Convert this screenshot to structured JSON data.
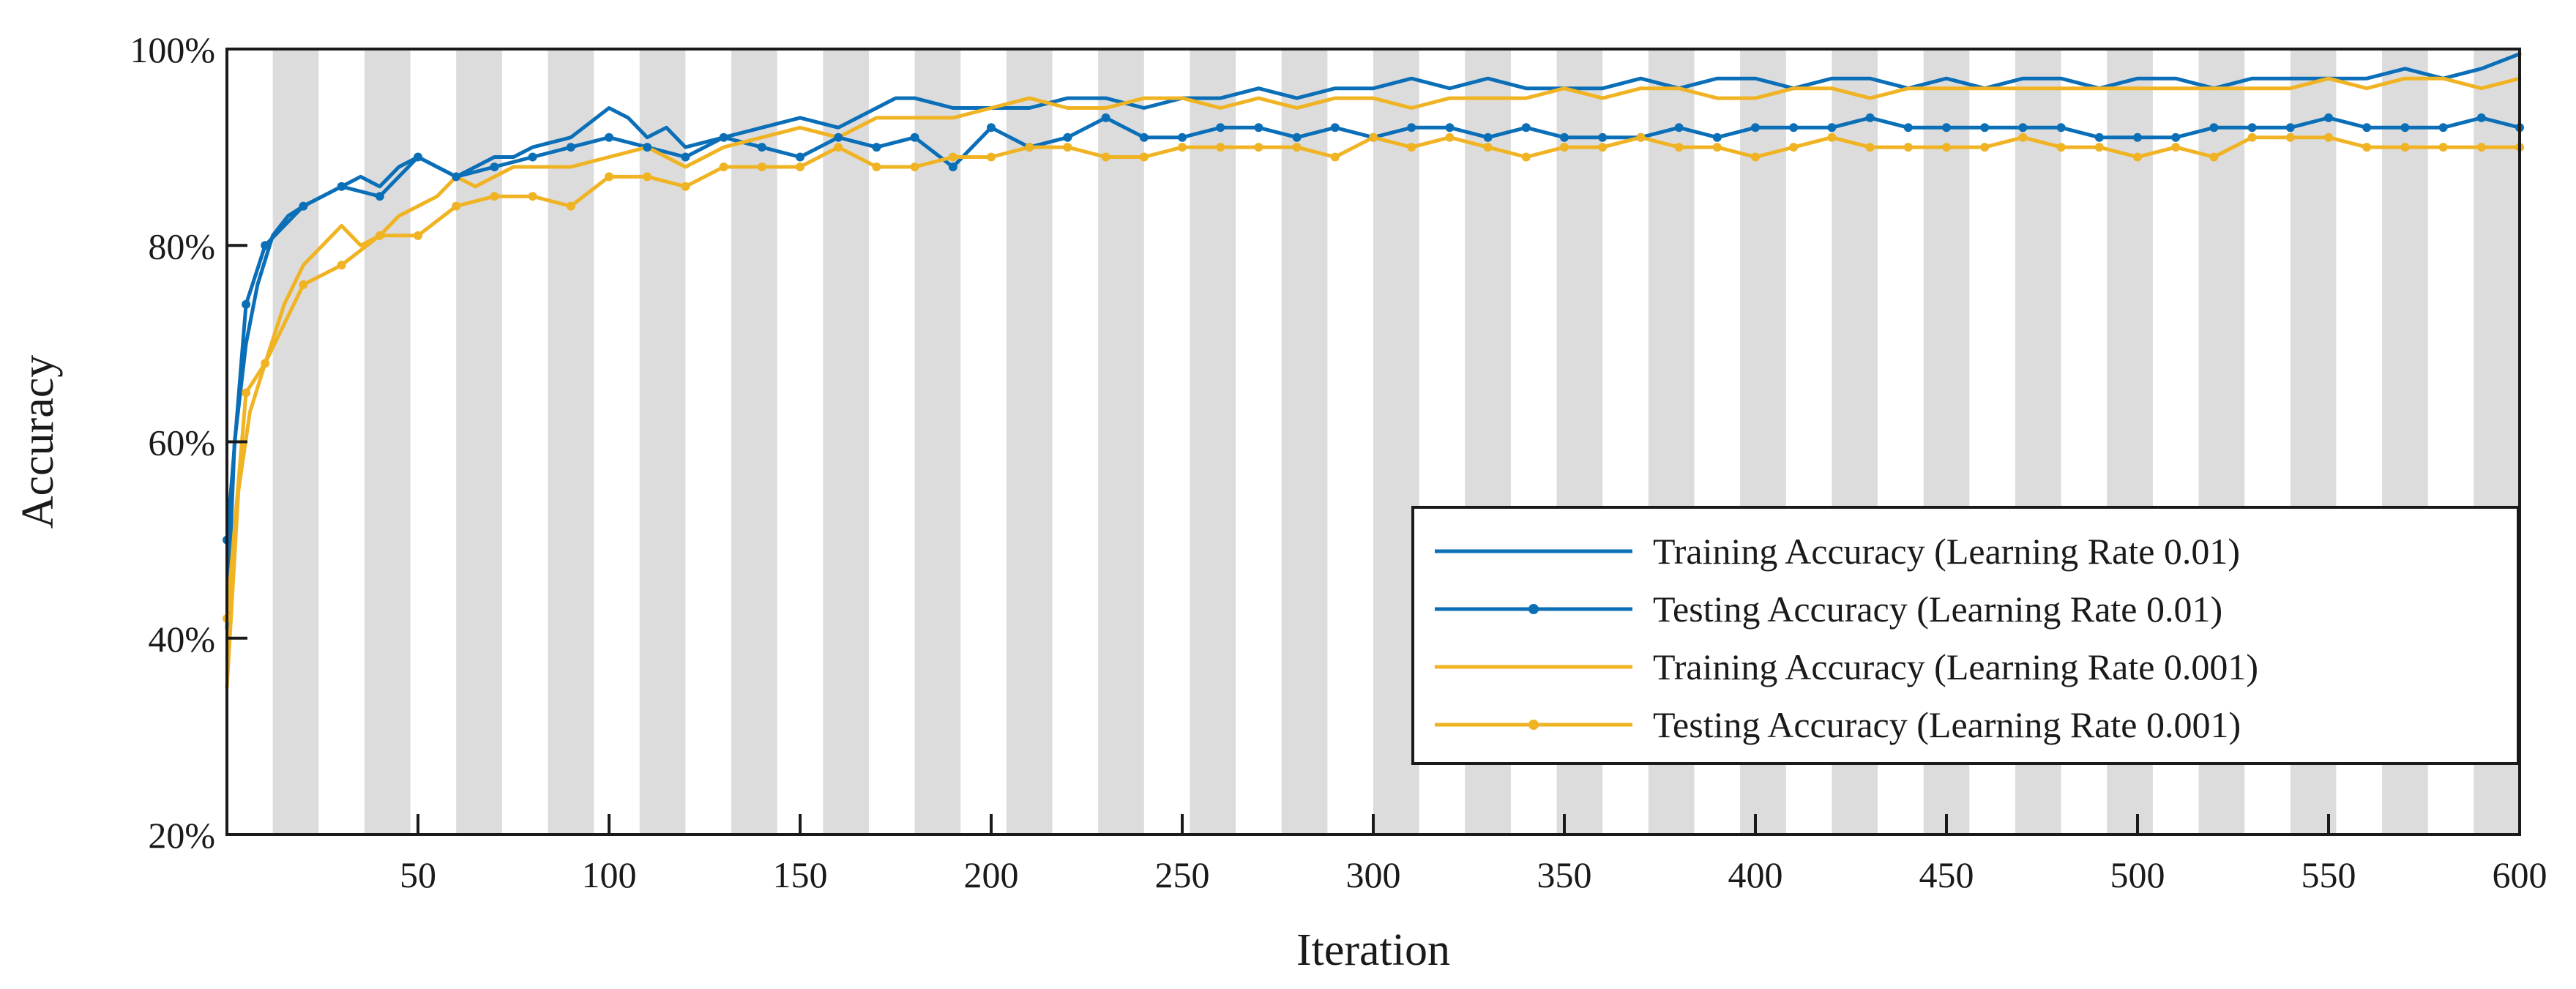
{
  "chart_data": {
    "type": "line",
    "title": "",
    "xlabel": "Iteration",
    "ylabel": "Accuracy",
    "xlim": [
      0,
      600
    ],
    "ylim": [
      20,
      100
    ],
    "xticks": [
      50,
      100,
      150,
      200,
      250,
      300,
      350,
      400,
      450,
      500,
      550,
      600
    ],
    "xtick_labels": [
      "50",
      "100",
      "150",
      "200",
      "250",
      "300",
      "350",
      "400",
      "450",
      "500",
      "550",
      "600"
    ],
    "yticks": [
      20,
      40,
      60,
      80,
      100
    ],
    "ytick_labels": [
      "20%",
      "40%",
      "60%",
      "80%",
      "100%"
    ],
    "background_bands": {
      "period": 24,
      "band_width": 12,
      "start": 12,
      "color": "#dcdcdc"
    },
    "legend_position": "bottom-right",
    "series": [
      {
        "name": "Training Accuracy (Learning Rate 0.01)",
        "color": "#0b6fb8",
        "marker": "none",
        "x": [
          0,
          2,
          5,
          8,
          12,
          16,
          20,
          25,
          30,
          35,
          40,
          45,
          50,
          55,
          60,
          65,
          70,
          75,
          80,
          90,
          100,
          105,
          110,
          115,
          120,
          130,
          140,
          150,
          160,
          170,
          175,
          180,
          190,
          200,
          210,
          220,
          230,
          240,
          250,
          260,
          270,
          280,
          290,
          300,
          310,
          320,
          330,
          340,
          350,
          360,
          370,
          380,
          390,
          400,
          410,
          420,
          430,
          440,
          450,
          460,
          470,
          480,
          490,
          500,
          510,
          520,
          530,
          540,
          550,
          560,
          570,
          580,
          590,
          600
        ],
        "y": [
          41,
          60,
          70,
          76,
          81,
          83,
          84,
          85,
          86,
          87,
          86,
          88,
          89,
          88,
          87,
          88,
          89,
          89,
          90,
          91,
          94,
          93,
          91,
          92,
          90,
          91,
          92,
          93,
          92,
          94,
          95,
          95,
          94,
          94,
          94,
          95,
          95,
          94,
          95,
          95,
          96,
          95,
          96,
          96,
          97,
          96,
          97,
          96,
          96,
          96,
          97,
          96,
          97,
          97,
          96,
          97,
          97,
          96,
          97,
          96,
          97,
          97,
          96,
          97,
          97,
          96,
          97,
          97,
          97,
          97,
          98,
          97,
          98,
          99.5
        ]
      },
      {
        "name": "Testing Accuracy (Learning Rate 0.01)",
        "color": "#0b6fb8",
        "marker": "dot",
        "x": [
          0,
          5,
          10,
          20,
          30,
          40,
          50,
          60,
          70,
          80,
          90,
          100,
          110,
          120,
          130,
          140,
          150,
          160,
          170,
          180,
          190,
          200,
          210,
          220,
          230,
          240,
          250,
          260,
          270,
          280,
          290,
          300,
          310,
          320,
          330,
          340,
          350,
          360,
          370,
          380,
          390,
          400,
          410,
          420,
          430,
          440,
          450,
          460,
          470,
          480,
          490,
          500,
          510,
          520,
          530,
          540,
          550,
          560,
          570,
          580,
          590,
          600
        ],
        "y": [
          50,
          74,
          80,
          84,
          86,
          85,
          89,
          87,
          88,
          89,
          90,
          91,
          90,
          89,
          91,
          90,
          89,
          91,
          90,
          91,
          88,
          92,
          90,
          91,
          93,
          91,
          91,
          92,
          92,
          91,
          92,
          91,
          92,
          92,
          91,
          92,
          91,
          91,
          91,
          92,
          91,
          92,
          92,
          92,
          93,
          92,
          92,
          92,
          92,
          92,
          91,
          91,
          91,
          92,
          92,
          92,
          93,
          92,
          92,
          92,
          93,
          92
        ]
      },
      {
        "name": "Training Accuracy (Learning Rate 0.001)",
        "color": "#f0b323",
        "marker": "none",
        "x": [
          0,
          3,
          6,
          10,
          15,
          20,
          25,
          30,
          35,
          40,
          45,
          50,
          55,
          60,
          65,
          70,
          75,
          80,
          90,
          100,
          110,
          120,
          130,
          140,
          150,
          160,
          170,
          180,
          190,
          200,
          210,
          220,
          230,
          240,
          250,
          260,
          270,
          280,
          290,
          300,
          310,
          320,
          330,
          340,
          350,
          360,
          370,
          380,
          390,
          400,
          410,
          420,
          430,
          440,
          450,
          460,
          470,
          480,
          490,
          500,
          510,
          520,
          530,
          540,
          550,
          560,
          570,
          580,
          590,
          600
        ],
        "y": [
          35,
          55,
          63,
          68,
          74,
          78,
          80,
          82,
          80,
          81,
          83,
          84,
          85,
          87,
          86,
          87,
          88,
          88,
          88,
          89,
          90,
          88,
          90,
          91,
          92,
          91,
          93,
          93,
          93,
          94,
          95,
          94,
          94,
          95,
          95,
          94,
          95,
          94,
          95,
          95,
          94,
          95,
          95,
          95,
          96,
          95,
          96,
          96,
          95,
          95,
          96,
          96,
          95,
          96,
          96,
          96,
          96,
          96,
          96,
          96,
          96,
          96,
          96,
          96,
          97,
          96,
          97,
          97,
          96,
          97
        ]
      },
      {
        "name": "Testing Accuracy (Learning Rate 0.001)",
        "color": "#f0b323",
        "marker": "dot",
        "x": [
          0,
          5,
          10,
          20,
          30,
          40,
          50,
          60,
          70,
          80,
          90,
          100,
          110,
          120,
          130,
          140,
          150,
          160,
          170,
          180,
          190,
          200,
          210,
          220,
          230,
          240,
          250,
          260,
          270,
          280,
          290,
          300,
          310,
          320,
          330,
          340,
          350,
          360,
          370,
          380,
          390,
          400,
          410,
          420,
          430,
          440,
          450,
          460,
          470,
          480,
          490,
          500,
          510,
          520,
          530,
          540,
          550,
          560,
          570,
          580,
          590,
          600
        ],
        "y": [
          42,
          65,
          68,
          76,
          78,
          81,
          81,
          84,
          85,
          85,
          84,
          87,
          87,
          86,
          88,
          88,
          88,
          90,
          88,
          88,
          89,
          89,
          90,
          90,
          89,
          89,
          90,
          90,
          90,
          90,
          89,
          91,
          90,
          91,
          90,
          89,
          90,
          90,
          91,
          90,
          90,
          89,
          90,
          91,
          90,
          90,
          90,
          90,
          91,
          90,
          90,
          89,
          90,
          89,
          91,
          91,
          91,
          90,
          90,
          90,
          90,
          90
        ]
      }
    ]
  }
}
